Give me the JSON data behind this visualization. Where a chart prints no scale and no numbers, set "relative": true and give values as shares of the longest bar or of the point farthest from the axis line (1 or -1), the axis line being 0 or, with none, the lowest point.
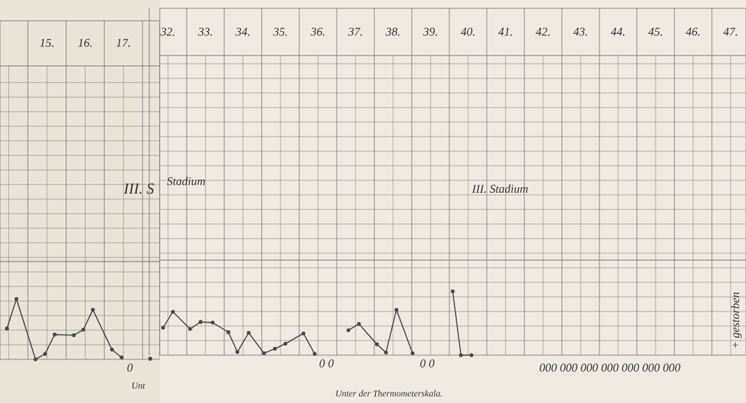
{
  "chart_data": [
    {
      "type": "line",
      "relative": true,
      "grid": true,
      "marker": "circle",
      "line_style": "solid",
      "tick_labels": "x",
      "xlim": [
        13.77,
        17.95
      ],
      "xticks": [
        {
          "value": 15,
          "label": "15."
        },
        {
          "value": 16,
          "label": "16."
        },
        {
          "value": 17,
          "label": "17."
        }
      ],
      "x": [
        13.95,
        14.2,
        14.7,
        14.95,
        15.2,
        15.7,
        15.95,
        16.2,
        16.7,
        16.95,
        17.2,
        17.7
      ],
      "values": [
        0.51,
        1,
        0,
        0.09,
        0.41,
        0.4,
        0.49,
        0.82,
        0.16,
        0.03,
        null,
        0.01
      ],
      "color": "#4a4a4a",
      "annotations": [
        "III. S",
        "0",
        "Unt"
      ]
    },
    {
      "type": "line",
      "relative": true,
      "grid": true,
      "marker": "circle",
      "line_style": "solid",
      "tick_labels": "x",
      "xlim": [
        31.78,
        47.41
      ],
      "xticks": [
        {
          "value": 32,
          "label": "32."
        },
        {
          "value": 33,
          "label": "33."
        },
        {
          "value": 34,
          "label": "34."
        },
        {
          "value": 35,
          "label": "35."
        },
        {
          "value": 36,
          "label": "36."
        },
        {
          "value": 37,
          "label": "37."
        },
        {
          "value": 38,
          "label": "38."
        },
        {
          "value": 39,
          "label": "39."
        },
        {
          "value": 40,
          "label": "40."
        },
        {
          "value": 41,
          "label": "41."
        },
        {
          "value": 42,
          "label": "42."
        },
        {
          "value": 43,
          "label": "43."
        },
        {
          "value": 44,
          "label": "44."
        },
        {
          "value": 45,
          "label": "45."
        },
        {
          "value": 46,
          "label": "46."
        },
        {
          "value": 47,
          "label": "47."
        }
      ],
      "x": [
        31.87,
        32.13,
        32.59,
        32.87,
        33.19,
        33.61,
        33.85,
        34.15,
        34.56,
        34.85,
        35.13,
        35.61,
        35.91,
        36.2,
        36.81,
        37.09,
        37.57,
        37.81,
        38.09,
        38.52,
        38.9,
        39.59,
        39.81,
        40.09
      ],
      "values": [
        0.43,
        0.68,
        0.41,
        0.52,
        0.51,
        0.36,
        0.05,
        0.35,
        0.03,
        0.1,
        0.18,
        0.34,
        0.02,
        null,
        0.39,
        0.49,
        0.17,
        0.04,
        0.71,
        0.03,
        null,
        1,
        0,
        0
      ],
      "color": "#4a4a4a",
      "annotations": [
        "Stadium",
        "III. Stadium",
        "0 0",
        "0 0",
        "000 000 000 000 000 000 000",
        "+ gestorben",
        "Unter der Thermometerskala."
      ]
    }
  ]
}
